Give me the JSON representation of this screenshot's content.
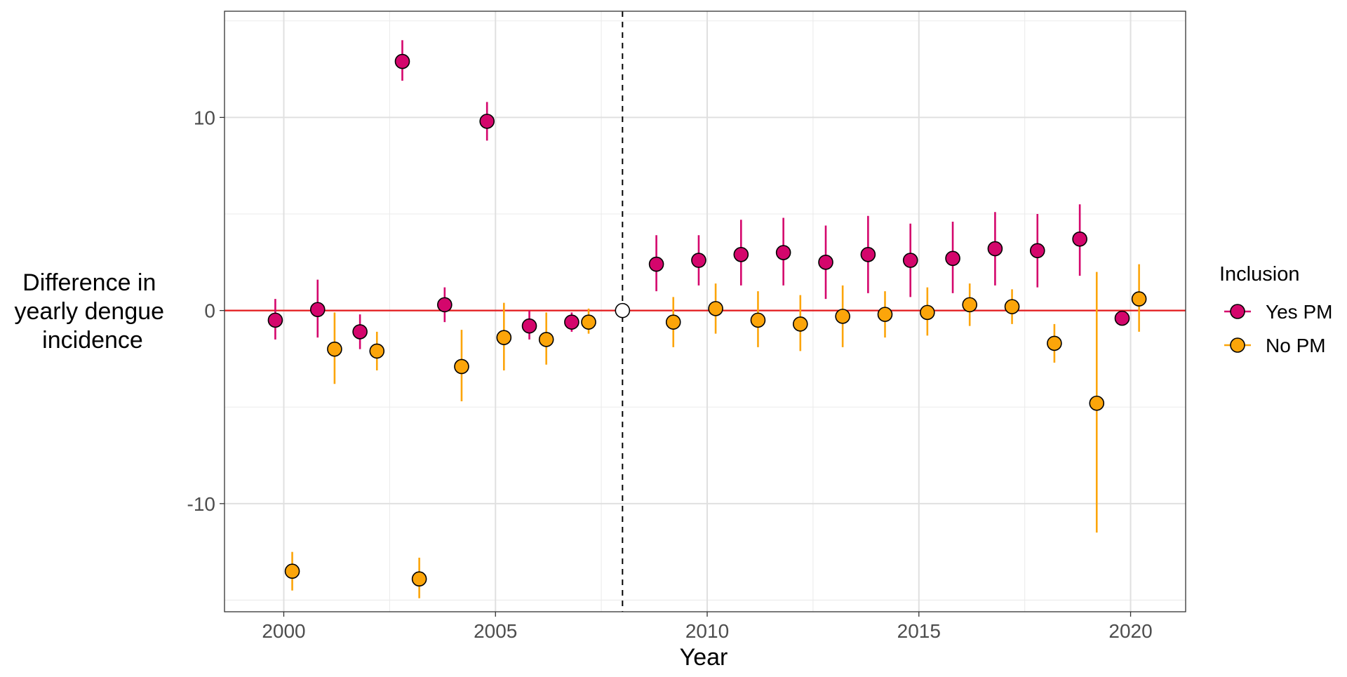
{
  "chart_data": {
    "type": "scatter",
    "title": "",
    "xlabel": "Year",
    "ylabel_lines": [
      "Difference in",
      "yearly dengue",
      "incidence"
    ],
    "xlim": [
      1998.6,
      2021.3
    ],
    "ylim": [
      -15.6,
      15.5
    ],
    "xticks": [
      2000,
      2005,
      2010,
      2015,
      2020
    ],
    "xtick_labels": [
      "2000",
      "2005",
      "2010",
      "2015",
      "2020"
    ],
    "yticks": [
      -10,
      0,
      10
    ],
    "ytick_labels": [
      "-10",
      "0",
      "10"
    ],
    "grid": true,
    "reference_line": {
      "y": 0,
      "color": "#e41a1c"
    },
    "vertical_line": {
      "x": 2008,
      "style": "dashed"
    },
    "reference_point": {
      "x": 2008,
      "y": 0
    },
    "legend": {
      "title": "Inclusion",
      "placement": "right"
    },
    "series": [
      {
        "name": "Yes PM",
        "color": "#d4066c",
        "points": [
          {
            "x": 2000,
            "y": -0.5,
            "lo": -1.5,
            "hi": 0.6
          },
          {
            "x": 2001,
            "y": 0.05,
            "lo": -1.4,
            "hi": 1.6
          },
          {
            "x": 2002,
            "y": -1.1,
            "lo": -2.0,
            "hi": -0.2
          },
          {
            "x": 2003,
            "y": 12.9,
            "lo": 11.9,
            "hi": 14.0
          },
          {
            "x": 2004,
            "y": 0.3,
            "lo": -0.6,
            "hi": 1.2
          },
          {
            "x": 2005,
            "y": 9.8,
            "lo": 8.8,
            "hi": 10.8
          },
          {
            "x": 2006,
            "y": -0.8,
            "lo": -1.5,
            "hi": 0.0
          },
          {
            "x": 2007,
            "y": -0.6,
            "lo": -1.1,
            "hi": -0.1
          },
          {
            "x": 2009,
            "y": 2.4,
            "lo": 1.0,
            "hi": 3.9
          },
          {
            "x": 2010,
            "y": 2.6,
            "lo": 1.3,
            "hi": 3.9
          },
          {
            "x": 2011,
            "y": 2.9,
            "lo": 1.3,
            "hi": 4.7
          },
          {
            "x": 2012,
            "y": 3.0,
            "lo": 1.3,
            "hi": 4.8
          },
          {
            "x": 2013,
            "y": 2.5,
            "lo": 0.6,
            "hi": 4.4
          },
          {
            "x": 2014,
            "y": 2.9,
            "lo": 0.9,
            "hi": 4.9
          },
          {
            "x": 2015,
            "y": 2.6,
            "lo": 0.7,
            "hi": 4.5
          },
          {
            "x": 2016,
            "y": 2.7,
            "lo": 0.9,
            "hi": 4.6
          },
          {
            "x": 2017,
            "y": 3.2,
            "lo": 1.3,
            "hi": 5.1
          },
          {
            "x": 2018,
            "y": 3.1,
            "lo": 1.2,
            "hi": 5.0
          },
          {
            "x": 2019,
            "y": 3.7,
            "lo": 1.8,
            "hi": 5.5
          },
          {
            "x": 2020,
            "y": -0.4,
            "lo": -0.7,
            "hi": 0.0
          }
        ]
      },
      {
        "name": "No PM",
        "color": "#fca50a",
        "points": [
          {
            "x": 2000,
            "y": -13.5,
            "lo": -14.5,
            "hi": -12.5
          },
          {
            "x": 2001,
            "y": -2.0,
            "lo": -3.8,
            "hi": -0.1
          },
          {
            "x": 2002,
            "y": -2.1,
            "lo": -3.1,
            "hi": -1.1
          },
          {
            "x": 2003,
            "y": -13.9,
            "lo": -14.9,
            "hi": -12.8
          },
          {
            "x": 2004,
            "y": -2.9,
            "lo": -4.7,
            "hi": -1.0
          },
          {
            "x": 2005,
            "y": -1.4,
            "lo": -3.1,
            "hi": 0.4
          },
          {
            "x": 2006,
            "y": -1.5,
            "lo": -2.8,
            "hi": -0.1
          },
          {
            "x": 2007,
            "y": -0.6,
            "lo": -1.2,
            "hi": 0.1
          },
          {
            "x": 2009,
            "y": -0.6,
            "lo": -1.9,
            "hi": 0.7
          },
          {
            "x": 2010,
            "y": 0.1,
            "lo": -1.2,
            "hi": 1.4
          },
          {
            "x": 2011,
            "y": -0.5,
            "lo": -1.9,
            "hi": 1.0
          },
          {
            "x": 2012,
            "y": -0.7,
            "lo": -2.1,
            "hi": 0.8
          },
          {
            "x": 2013,
            "y": -0.3,
            "lo": -1.9,
            "hi": 1.3
          },
          {
            "x": 2014,
            "y": -0.2,
            "lo": -1.4,
            "hi": 1.0
          },
          {
            "x": 2015,
            "y": -0.1,
            "lo": -1.3,
            "hi": 1.2
          },
          {
            "x": 2016,
            "y": 0.3,
            "lo": -0.8,
            "hi": 1.4
          },
          {
            "x": 2017,
            "y": 0.2,
            "lo": -0.7,
            "hi": 1.1
          },
          {
            "x": 2018,
            "y": -1.7,
            "lo": -2.7,
            "hi": -0.7
          },
          {
            "x": 2019,
            "y": -4.8,
            "lo": -11.5,
            "hi": 2.0
          },
          {
            "x": 2020,
            "y": 0.6,
            "lo": -1.1,
            "hi": 2.4
          }
        ]
      }
    ]
  }
}
